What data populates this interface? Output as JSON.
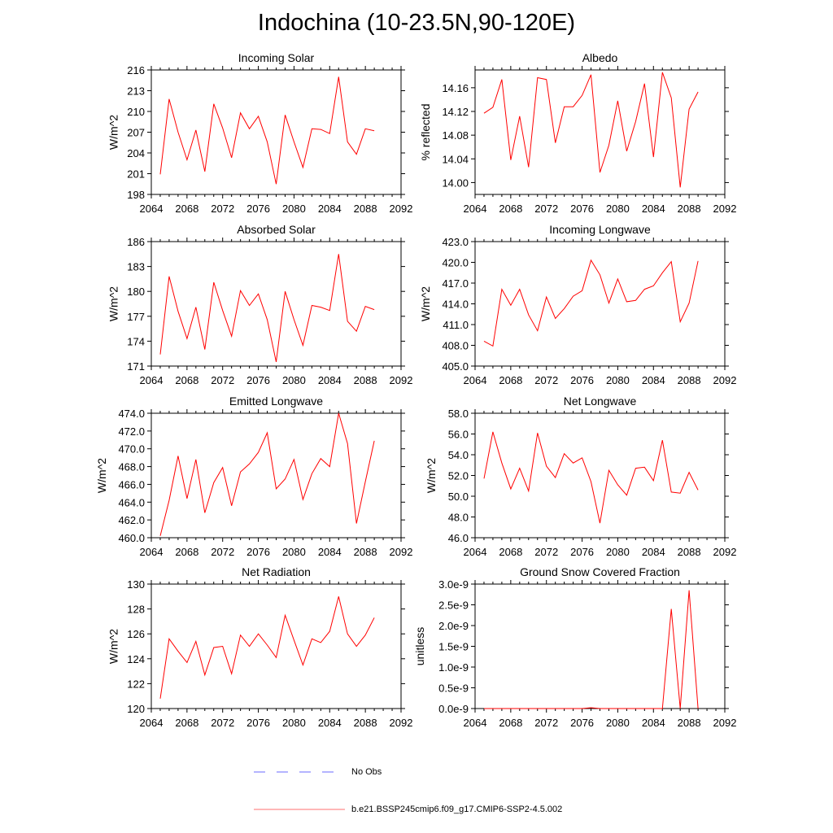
{
  "title": "Indochina (10-23.5N,90-120E)",
  "colors": {
    "series": "#ff0000",
    "obs": "#6a6aff",
    "axis": "#000000"
  },
  "legend": {
    "obs_label": "No Obs",
    "model_label": "b.e21.BSSP245cmip6.f09_g17.CMIP6-SSP2-4.5.002"
  },
  "chart_data": [
    {
      "type": "line",
      "title": "Incoming Solar",
      "ylabel": "W/m^2",
      "xlim": [
        2064,
        2092
      ],
      "ylim": [
        198,
        216
      ],
      "xticks": [
        2064,
        2068,
        2072,
        2076,
        2080,
        2084,
        2088,
        2092
      ],
      "yticks": [
        198,
        201,
        204,
        207,
        210,
        213,
        216
      ],
      "ytick_labels": [
        "198",
        "201",
        "204",
        "207",
        "210",
        "213",
        "216"
      ],
      "x": [
        2065,
        2066,
        2067,
        2068,
        2069,
        2070,
        2071,
        2072,
        2073,
        2074,
        2075,
        2076,
        2077,
        2078,
        2079,
        2080,
        2081,
        2082,
        2083,
        2084,
        2085,
        2086,
        2087,
        2088,
        2089
      ],
      "values": [
        200.9,
        211.8,
        207.0,
        203.0,
        207.3,
        201.3,
        211.1,
        207.6,
        203.3,
        209.8,
        207.5,
        209.3,
        205.6,
        199.5,
        209.5,
        205.6,
        201.9,
        207.5,
        207.4,
        206.8,
        215.0,
        205.6,
        203.8,
        207.5,
        207.2
      ]
    },
    {
      "type": "line",
      "title": "Albedo",
      "ylabel": "% reflected",
      "xlim": [
        2064,
        2092
      ],
      "ylim": [
        13.98,
        14.19
      ],
      "xticks": [
        2064,
        2068,
        2072,
        2076,
        2080,
        2084,
        2088,
        2092
      ],
      "yticks": [
        14.0,
        14.04,
        14.08,
        14.12,
        14.16
      ],
      "ytick_labels": [
        "14.00",
        "14.04",
        "14.08",
        "14.12",
        "14.16"
      ],
      "x": [
        2065,
        2066,
        2067,
        2068,
        2069,
        2070,
        2071,
        2072,
        2073,
        2074,
        2075,
        2076,
        2077,
        2078,
        2079,
        2080,
        2081,
        2082,
        2083,
        2084,
        2085,
        2086,
        2087,
        2088,
        2089
      ],
      "values": [
        14.117,
        14.127,
        14.174,
        14.038,
        14.112,
        14.026,
        14.177,
        14.174,
        14.067,
        14.128,
        14.128,
        14.147,
        14.182,
        14.017,
        14.063,
        14.138,
        14.053,
        14.103,
        14.167,
        14.043,
        14.186,
        14.143,
        13.992,
        14.124,
        14.153
      ]
    },
    {
      "type": "line",
      "title": "Absorbed Solar",
      "ylabel": "W/m^2",
      "xlim": [
        2064,
        2092
      ],
      "ylim": [
        171,
        186
      ],
      "xticks": [
        2064,
        2068,
        2072,
        2076,
        2080,
        2084,
        2088,
        2092
      ],
      "yticks": [
        171,
        174,
        177,
        180,
        183,
        186
      ],
      "ytick_labels": [
        "171",
        "174",
        "177",
        "180",
        "183",
        "186"
      ],
      "x": [
        2065,
        2066,
        2067,
        2068,
        2069,
        2070,
        2071,
        2072,
        2073,
        2074,
        2075,
        2076,
        2077,
        2078,
        2079,
        2080,
        2081,
        2082,
        2083,
        2084,
        2085,
        2086,
        2087,
        2088,
        2089
      ],
      "values": [
        172.4,
        181.8,
        177.6,
        174.3,
        178.1,
        173.0,
        181.1,
        177.7,
        174.6,
        180.1,
        178.3,
        179.7,
        176.6,
        171.5,
        180.0,
        176.6,
        173.5,
        178.3,
        178.1,
        177.7,
        184.5,
        176.4,
        175.2,
        178.2,
        177.8
      ]
    },
    {
      "type": "line",
      "title": "Incoming Longwave",
      "ylabel": "W/m^2",
      "xlim": [
        2064,
        2092
      ],
      "ylim": [
        405,
        423
      ],
      "xticks": [
        2064,
        2068,
        2072,
        2076,
        2080,
        2084,
        2088,
        2092
      ],
      "yticks": [
        405,
        408,
        411,
        414,
        417,
        420,
        423
      ],
      "ytick_labels": [
        "405.0",
        "408.0",
        "411.0",
        "414.0",
        "417.0",
        "420.0",
        "423.0"
      ],
      "x": [
        2065,
        2066,
        2067,
        2068,
        2069,
        2070,
        2071,
        2072,
        2073,
        2074,
        2075,
        2076,
        2077,
        2078,
        2079,
        2080,
        2081,
        2082,
        2083,
        2084,
        2085,
        2086,
        2087,
        2088,
        2089
      ],
      "values": [
        408.6,
        407.9,
        416.1,
        413.8,
        416.1,
        412.4,
        410.1,
        415.0,
        411.9,
        413.3,
        415.1,
        415.9,
        420.3,
        418.2,
        414.1,
        417.6,
        414.3,
        414.5,
        416.1,
        416.6,
        418.5,
        420.1,
        411.4,
        414.1,
        420.2
      ]
    },
    {
      "type": "line",
      "title": "Emitted Longwave",
      "ylabel": "W/m^2",
      "xlim": [
        2064,
        2092
      ],
      "ylim": [
        460,
        474
      ],
      "xticks": [
        2064,
        2068,
        2072,
        2076,
        2080,
        2084,
        2088,
        2092
      ],
      "yticks": [
        460,
        462,
        464,
        466,
        468,
        470,
        472,
        474
      ],
      "ytick_labels": [
        "460.0",
        "462.0",
        "464.0",
        "466.0",
        "468.0",
        "470.0",
        "472.0",
        "474.0"
      ],
      "x": [
        2065,
        2066,
        2067,
        2068,
        2069,
        2070,
        2071,
        2072,
        2073,
        2074,
        2075,
        2076,
        2077,
        2078,
        2079,
        2080,
        2081,
        2082,
        2083,
        2084,
        2085,
        2086,
        2087,
        2088,
        2089
      ],
      "values": [
        460.2,
        464.2,
        469.2,
        464.4,
        468.8,
        462.8,
        466.2,
        467.9,
        463.6,
        467.4,
        468.3,
        469.6,
        471.8,
        465.5,
        466.6,
        468.8,
        464.3,
        467.2,
        468.9,
        468.0,
        474.0,
        470.6,
        461.6,
        466.3,
        470.9
      ]
    },
    {
      "type": "line",
      "title": "Net Longwave",
      "ylabel": "W/m^2",
      "xlim": [
        2064,
        2092
      ],
      "ylim": [
        46,
        58
      ],
      "xticks": [
        2064,
        2068,
        2072,
        2076,
        2080,
        2084,
        2088,
        2092
      ],
      "yticks": [
        46,
        48,
        50,
        52,
        54,
        56,
        58
      ],
      "ytick_labels": [
        "46.0",
        "48.0",
        "50.0",
        "52.0",
        "54.0",
        "56.0",
        "58.0"
      ],
      "x": [
        2065,
        2066,
        2067,
        2068,
        2069,
        2070,
        2071,
        2072,
        2073,
        2074,
        2075,
        2076,
        2077,
        2078,
        2079,
        2080,
        2081,
        2082,
        2083,
        2084,
        2085,
        2086,
        2087,
        2088,
        2089
      ],
      "values": [
        51.7,
        56.2,
        53.2,
        50.7,
        52.7,
        50.5,
        56.1,
        52.9,
        51.8,
        54.1,
        53.2,
        53.7,
        51.4,
        47.4,
        52.5,
        51.1,
        50.1,
        52.7,
        52.8,
        51.5,
        55.4,
        50.4,
        50.3,
        52.3,
        50.6
      ]
    },
    {
      "type": "line",
      "title": "Net Radiation",
      "ylabel": "W/m^2",
      "xlim": [
        2064,
        2092
      ],
      "ylim": [
        120,
        130
      ],
      "xticks": [
        2064,
        2068,
        2072,
        2076,
        2080,
        2084,
        2088,
        2092
      ],
      "yticks": [
        120,
        122,
        124,
        126,
        128,
        130
      ],
      "ytick_labels": [
        "120",
        "122",
        "124",
        "126",
        "128",
        "130"
      ],
      "x": [
        2065,
        2066,
        2067,
        2068,
        2069,
        2070,
        2071,
        2072,
        2073,
        2074,
        2075,
        2076,
        2077,
        2078,
        2079,
        2080,
        2081,
        2082,
        2083,
        2084,
        2085,
        2086,
        2087,
        2088,
        2089
      ],
      "values": [
        120.8,
        125.6,
        124.6,
        123.7,
        125.4,
        122.7,
        124.9,
        125.0,
        122.8,
        125.9,
        125.0,
        126.0,
        125.1,
        124.1,
        127.5,
        125.5,
        123.5,
        125.6,
        125.3,
        126.2,
        129.0,
        126.0,
        125.0,
        125.9,
        127.3
      ]
    },
    {
      "type": "line",
      "title": "Ground Snow Covered Fraction",
      "ylabel": "unitless",
      "xlim": [
        2064,
        2092
      ],
      "ylim": [
        0,
        3e-09
      ],
      "xticks": [
        2064,
        2068,
        2072,
        2076,
        2080,
        2084,
        2088,
        2092
      ],
      "yticks": [
        0,
        5e-10,
        1e-09,
        1.5e-09,
        2e-09,
        2.5e-09,
        3e-09
      ],
      "ytick_labels": [
        "0.0e-9",
        "0.5e-9",
        "1.0e-9",
        "1.5e-9",
        "2.0e-9",
        "2.5e-9",
        "3.0e-9"
      ],
      "x": [
        2065,
        2066,
        2067,
        2068,
        2069,
        2070,
        2071,
        2072,
        2073,
        2074,
        2075,
        2076,
        2077,
        2078,
        2079,
        2080,
        2081,
        2082,
        2083,
        2084,
        2085,
        2086,
        2087,
        2088,
        2089
      ],
      "values": [
        0,
        0,
        0,
        0,
        0,
        0,
        0,
        0,
        0,
        0,
        0,
        0,
        2e-11,
        0,
        0,
        0,
        0,
        0,
        0,
        0,
        0,
        2.4e-09,
        0,
        2.85e-09,
        0
      ]
    }
  ]
}
